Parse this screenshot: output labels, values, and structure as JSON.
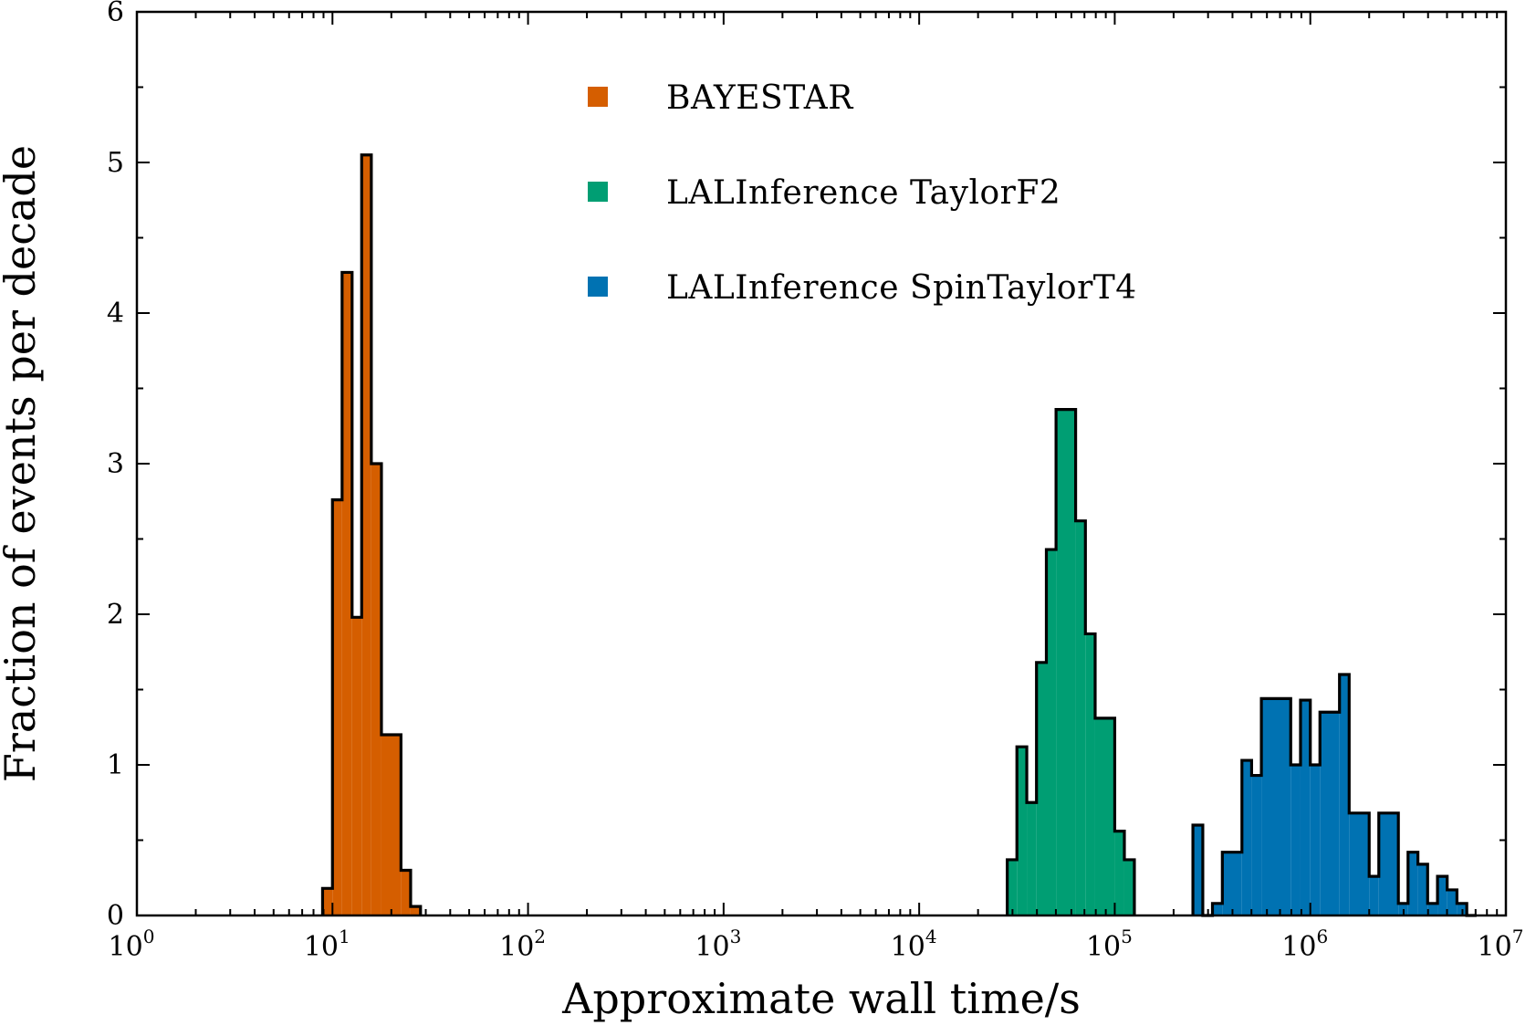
{
  "chart_data": {
    "type": "histogram",
    "title": "",
    "xlabel": "Approximate wall time/s",
    "ylabel": "Fraction of events per decade",
    "xscale": "log",
    "xlim": [
      1,
      10000000
    ],
    "ylim": [
      0,
      6
    ],
    "x_ticks": [
      {
        "base": "10",
        "exp": "0",
        "value": 1
      },
      {
        "base": "10",
        "exp": "1",
        "value": 10
      },
      {
        "base": "10",
        "exp": "2",
        "value": 100
      },
      {
        "base": "10",
        "exp": "3",
        "value": 1000
      },
      {
        "base": "10",
        "exp": "4",
        "value": 10000
      },
      {
        "base": "10",
        "exp": "5",
        "value": 100000
      },
      {
        "base": "10",
        "exp": "6",
        "value": 1000000
      },
      {
        "base": "10",
        "exp": "7",
        "value": 10000000
      }
    ],
    "y_ticks": [
      "0",
      "1",
      "2",
      "3",
      "4",
      "5",
      "6"
    ],
    "grid": false,
    "legend_position": "top-center",
    "series": [
      {
        "name": "BAYESTAR",
        "color": "#d55e00",
        "bin_edges": [
          8.9,
          10.0,
          11.2,
          12.6,
          14.1,
          15.8,
          17.8,
          22.4,
          25.1,
          28.2
        ],
        "values": [
          0.18,
          2.76,
          4.27,
          1.98,
          5.05,
          3.0,
          1.2,
          0.3,
          0.06
        ]
      },
      {
        "name": "LALInference TaylorF2",
        "color": "#009e73",
        "bin_edges": [
          28200,
          31600,
          35500,
          39800,
          44700,
          50100,
          63100,
          70800,
          79400,
          100000,
          112000,
          126000
        ],
        "values": [
          0.37,
          1.12,
          0.75,
          1.68,
          2.43,
          3.36,
          2.62,
          1.87,
          1.31,
          0.56,
          0.37
        ]
      },
      {
        "name": "LALInference SpinTaylorT4",
        "color": "#0072b2",
        "bin_edges": [
          251000,
          282000,
          316000,
          355000,
          447000,
          501000,
          562000,
          794000,
          891000,
          1000000,
          1120000,
          1410000,
          1580000,
          2000000,
          2240000,
          2820000,
          3160000,
          3550000,
          3980000,
          4470000,
          5010000,
          5620000,
          6310000,
          7080000
        ],
        "values": [
          0.6,
          0.0,
          0.08,
          0.42,
          1.03,
          0.93,
          1.44,
          1.0,
          1.43,
          1.0,
          1.35,
          1.6,
          0.68,
          0.26,
          0.68,
          0.08,
          0.42,
          0.34,
          0.08,
          0.26,
          0.17,
          0.08,
          0.0
        ]
      }
    ],
    "legend_labels": [
      {
        "main": "BAYESTAR",
        "suffix": ""
      },
      {
        "main": "LALInference",
        "suffix": " TaylorF2"
      },
      {
        "main": "LALInference",
        "suffix": " SpinTaylorT4"
      }
    ]
  }
}
